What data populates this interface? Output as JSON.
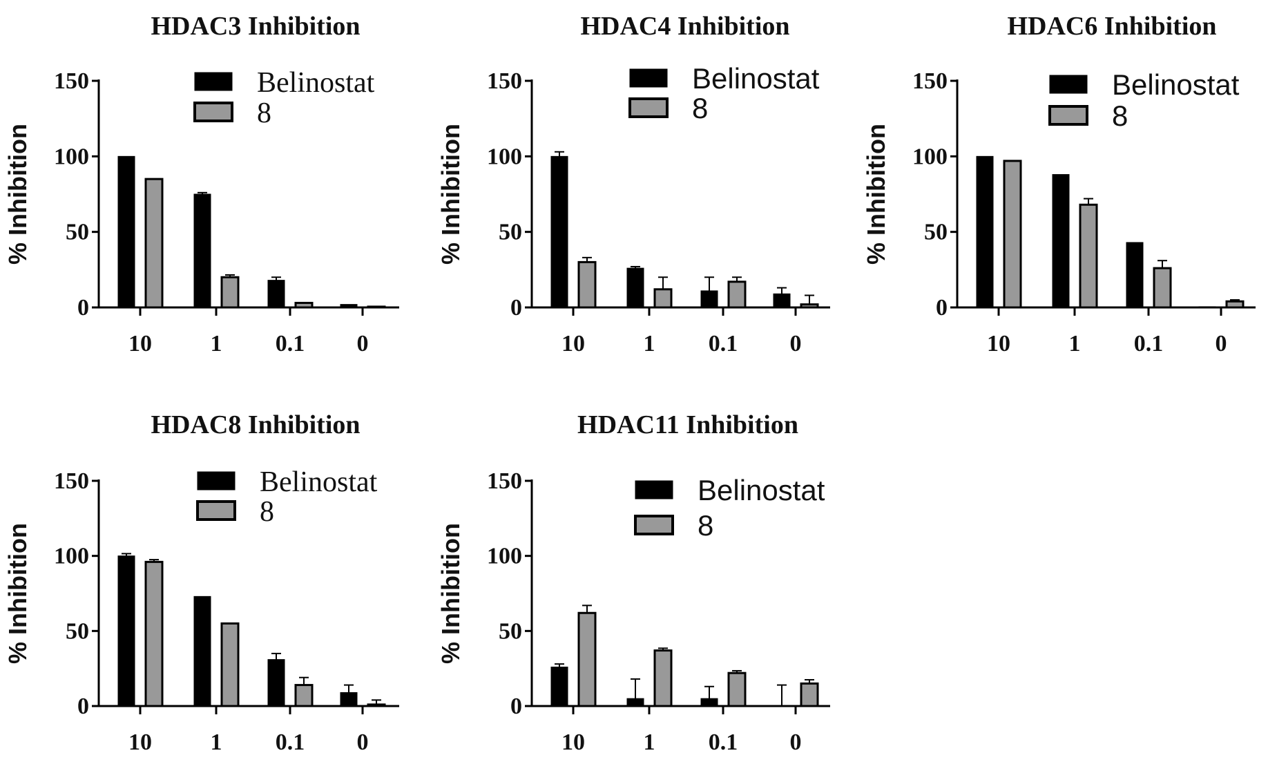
{
  "chart_data": [
    {
      "type": "bar",
      "title": "HDAC3 Inhibition",
      "ylabel": "% Inhibition",
      "xlabel": "",
      "categories": [
        "10",
        "1",
        "0.1",
        "0"
      ],
      "ylim": [
        0,
        150
      ],
      "yticks": [
        "0",
        "50",
        "100",
        "150"
      ],
      "legend": {
        "position": "top-right",
        "font": "serif"
      },
      "series": [
        {
          "name": "Belinostat",
          "color": "#000000",
          "values": [
            100,
            75,
            18,
            2
          ],
          "errors": [
            0.5,
            1,
            2,
            0.5
          ]
        },
        {
          "name": "8",
          "color": "#999999",
          "values": [
            85,
            20,
            3,
            0.5
          ],
          "errors": [
            0.5,
            1.5,
            0.5,
            0.3
          ]
        }
      ]
    },
    {
      "type": "bar",
      "title": "HDAC4 Inhibition",
      "ylabel": "% Inhibition",
      "xlabel": "",
      "categories": [
        "10",
        "1",
        "0.1",
        "0"
      ],
      "ylim": [
        0,
        150
      ],
      "yticks": [
        "0",
        "50",
        "100",
        "150"
      ],
      "legend": {
        "position": "top-right",
        "font": "sans"
      },
      "series": [
        {
          "name": "Belinostat",
          "color": "#000000",
          "values": [
            100,
            26,
            11,
            9
          ],
          "errors": [
            3,
            1,
            9,
            4
          ]
        },
        {
          "name": "8",
          "color": "#999999",
          "values": [
            30,
            12,
            17,
            2
          ],
          "errors": [
            3,
            8,
            3,
            6
          ]
        }
      ]
    },
    {
      "type": "bar",
      "title": "HDAC6 Inhibition",
      "ylabel": "% Inhibition",
      "xlabel": "",
      "categories": [
        "10",
        "1",
        "0.1",
        "0"
      ],
      "ylim": [
        0,
        150
      ],
      "yticks": [
        "0",
        "50",
        "100",
        "150"
      ],
      "legend": {
        "position": "top-right",
        "font": "sans"
      },
      "series": [
        {
          "name": "Belinostat",
          "color": "#000000",
          "values": [
            100,
            88,
            43,
            0.5
          ],
          "errors": [
            0.5,
            0.5,
            0.5,
            0.2
          ]
        },
        {
          "name": "8",
          "color": "#999999",
          "values": [
            97,
            68,
            26,
            4
          ],
          "errors": [
            0.5,
            4,
            5,
            1
          ]
        }
      ]
    },
    {
      "type": "bar",
      "title": "HDAC8 Inhibition",
      "ylabel": "% Inhibition",
      "xlabel": "",
      "categories": [
        "10",
        "1",
        "0.1",
        "0"
      ],
      "ylim": [
        0,
        150
      ],
      "yticks": [
        "0",
        "50",
        "100",
        "150"
      ],
      "legend": {
        "position": "top-right",
        "font": "serif"
      },
      "series": [
        {
          "name": "Belinostat",
          "color": "#000000",
          "values": [
            100,
            73,
            31,
            9
          ],
          "errors": [
            1.5,
            0.5,
            4,
            5
          ]
        },
        {
          "name": "8",
          "color": "#999999",
          "values": [
            96,
            55,
            14,
            1
          ],
          "errors": [
            1.5,
            0.5,
            5,
            3
          ]
        }
      ]
    },
    {
      "type": "bar",
      "title": "HDAC11 Inhibition",
      "ylabel": "% Inhibition",
      "xlabel": "",
      "categories": [
        "10",
        "1",
        "0.1",
        "0"
      ],
      "ylim": [
        0,
        150
      ],
      "yticks": [
        "0",
        "50",
        "100",
        "150"
      ],
      "legend": {
        "position": "top-right",
        "font": "sans"
      },
      "series": [
        {
          "name": "Belinostat",
          "color": "#000000",
          "values": [
            26,
            5,
            5,
            0
          ],
          "errors": [
            2,
            13,
            8,
            14
          ]
        },
        {
          "name": "8",
          "color": "#999999",
          "values": [
            62,
            37,
            22,
            15
          ],
          "errors": [
            5,
            1.5,
            1.5,
            2.5
          ]
        }
      ]
    }
  ]
}
